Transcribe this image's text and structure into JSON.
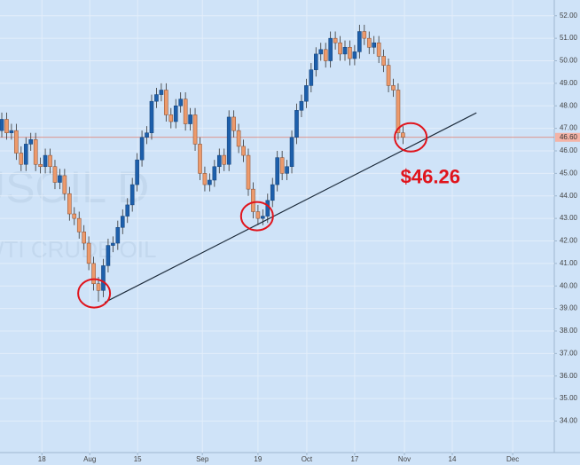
{
  "chart_data": {
    "type": "candlestick",
    "watermark": [
      "USOIL D",
      "WTI CRUDE OIL"
    ],
    "open": [
      46.9,
      47.4,
      46.8,
      46.9,
      45.9,
      45.4,
      46.3,
      46.5,
      45.4,
      45.3,
      45.8,
      45.3,
      44.6,
      44.9,
      44.1,
      43.2,
      43.0,
      42.4,
      41.9,
      41.0,
      40.1,
      39.8,
      40.9,
      41.8,
      41.9,
      42.6,
      43.1,
      43.6,
      44.5,
      45.6,
      46.6,
      46.8,
      48.2,
      48.5,
      48.7,
      47.6,
      47.3,
      48.0,
      48.3,
      47.2,
      47.6,
      46.3,
      45.0,
      44.5,
      44.7,
      45.3,
      45.8,
      45.4,
      47.5,
      46.9,
      46.2,
      45.8,
      44.3,
      43.3,
      43.0,
      43.1,
      43.8,
      44.5,
      45.7,
      45.0,
      45.3,
      46.6,
      47.8,
      48.2,
      48.9,
      49.6,
      50.3,
      50.5,
      50.0,
      51.0,
      50.8,
      50.3,
      50.6,
      50.1,
      50.4,
      51.3,
      51.0,
      50.6,
      50.8,
      50.2,
      49.8,
      48.9,
      48.7,
      46.8
    ],
    "high": [
      47.7,
      47.7,
      47.2,
      47.2,
      46.2,
      46.6,
      46.8,
      46.8,
      45.7,
      46.1,
      46.1,
      45.6,
      45.2,
      45.2,
      44.4,
      43.5,
      43.3,
      42.7,
      42.2,
      41.3,
      40.4,
      41.2,
      42.1,
      42.2,
      42.9,
      43.4,
      43.9,
      44.8,
      45.9,
      46.9,
      47.1,
      48.5,
      48.8,
      49.0,
      49.0,
      47.9,
      48.3,
      48.6,
      48.6,
      47.9,
      47.9,
      46.6,
      45.3,
      45.0,
      45.6,
      46.1,
      46.1,
      47.8,
      47.8,
      47.2,
      46.5,
      46.1,
      44.6,
      43.6,
      43.4,
      44.1,
      44.8,
      46.0,
      46.0,
      45.6,
      46.9,
      48.1,
      48.5,
      49.2,
      49.9,
      50.6,
      50.8,
      50.8,
      51.3,
      51.3,
      51.1,
      50.9,
      50.9,
      50.7,
      51.6,
      51.6,
      51.3,
      51.1,
      51.1,
      50.5,
      50.1,
      49.2,
      49.0,
      47.1
    ],
    "low": [
      46.6,
      46.5,
      46.5,
      45.6,
      45.1,
      45.1,
      46.0,
      45.1,
      45.0,
      45.0,
      45.0,
      44.3,
      44.3,
      43.8,
      42.9,
      42.7,
      42.1,
      41.6,
      40.7,
      39.8,
      39.3,
      39.5,
      40.6,
      41.5,
      41.6,
      42.3,
      42.8,
      43.3,
      44.2,
      45.3,
      46.3,
      46.5,
      47.9,
      48.2,
      47.3,
      47.0,
      47.0,
      47.7,
      46.9,
      46.9,
      46.0,
      44.7,
      44.2,
      44.2,
      44.4,
      45.0,
      45.1,
      45.1,
      46.6,
      45.9,
      45.5,
      44.0,
      43.0,
      42.7,
      42.7,
      42.8,
      43.5,
      44.2,
      44.7,
      44.7,
      45.0,
      46.3,
      47.5,
      47.9,
      48.6,
      49.3,
      50.0,
      49.7,
      49.7,
      50.5,
      50.0,
      50.0,
      49.8,
      49.8,
      50.1,
      50.7,
      50.3,
      50.3,
      49.9,
      49.5,
      48.6,
      48.4,
      46.5,
      46.3
    ],
    "close": [
      47.4,
      46.8,
      46.9,
      45.9,
      45.4,
      46.3,
      46.5,
      45.4,
      45.3,
      45.8,
      45.3,
      44.6,
      44.9,
      44.1,
      43.2,
      43.0,
      42.4,
      41.9,
      41.0,
      40.1,
      39.8,
      40.9,
      41.8,
      41.9,
      42.6,
      43.1,
      43.6,
      44.5,
      45.6,
      46.6,
      46.8,
      48.2,
      48.5,
      48.7,
      47.6,
      47.3,
      48.0,
      48.3,
      47.2,
      47.6,
      46.3,
      45.0,
      44.5,
      44.7,
      45.3,
      45.8,
      45.4,
      47.5,
      46.9,
      46.2,
      45.8,
      44.3,
      43.3,
      43.0,
      43.1,
      43.8,
      44.5,
      45.7,
      45.0,
      45.3,
      46.6,
      47.8,
      48.2,
      48.9,
      49.6,
      50.3,
      50.5,
      50.0,
      51.0,
      50.8,
      50.3,
      50.6,
      50.1,
      50.4,
      51.3,
      51.0,
      50.6,
      50.8,
      50.2,
      49.8,
      48.9,
      48.7,
      46.8,
      46.6
    ],
    "up_color": "#1d5fab",
    "down_color": "#ec9a6c",
    "xlim": [
      -0.37,
      114.3
    ],
    "ylim": [
      32.6,
      52.7
    ],
    "xticks": [
      {
        "value": 8.3,
        "label": "18"
      },
      {
        "value": 18.2,
        "label": "Aug"
      },
      {
        "value": 28.1,
        "label": "15"
      },
      {
        "value": 41.5,
        "label": "Sep"
      },
      {
        "value": 53.0,
        "label": "19"
      },
      {
        "value": 63.1,
        "label": "Oct"
      },
      {
        "value": 73.0,
        "label": "17"
      },
      {
        "value": 83.3,
        "label": "Nov"
      },
      {
        "value": 93.2,
        "label": "14"
      },
      {
        "value": 105.7,
        "label": "Dec"
      }
    ],
    "yticks": [
      {
        "value": 34,
        "label": "34.00"
      },
      {
        "value": 35,
        "label": "35.00"
      },
      {
        "value": 36,
        "label": "36.00"
      },
      {
        "value": 37,
        "label": "37.00"
      },
      {
        "value": 38,
        "label": "38.00"
      },
      {
        "value": 39,
        "label": "39.00"
      },
      {
        "value": 40,
        "label": "40.00"
      },
      {
        "value": 41,
        "label": "41.00"
      },
      {
        "value": 42,
        "label": "42.00"
      },
      {
        "value": 43,
        "label": "43.00"
      },
      {
        "value": 44,
        "label": "44.00"
      },
      {
        "value": 45,
        "label": "45.00"
      },
      {
        "value": 46,
        "label": "46.00"
      },
      {
        "value": 47,
        "label": "47.00"
      },
      {
        "value": 48,
        "label": "48.00"
      },
      {
        "value": 49,
        "label": "49.00"
      },
      {
        "value": 50,
        "label": "50.00"
      },
      {
        "value": 51,
        "label": "51.00"
      },
      {
        "value": 52,
        "label": "52.00"
      }
    ],
    "grid": true,
    "last_price": {
      "value": 46.6,
      "label": "46.60"
    },
    "trendline": {
      "x": [
        21.3,
        98.2
      ],
      "y": [
        39.27,
        47.69
      ]
    },
    "highlights": {
      "x": [
        19.1,
        52.8,
        84.6
      ],
      "y": [
        39.67,
        43.1,
        46.6
      ]
    },
    "annotation": {
      "x": 82.5,
      "y": 44.8,
      "text": "$46.26"
    }
  }
}
